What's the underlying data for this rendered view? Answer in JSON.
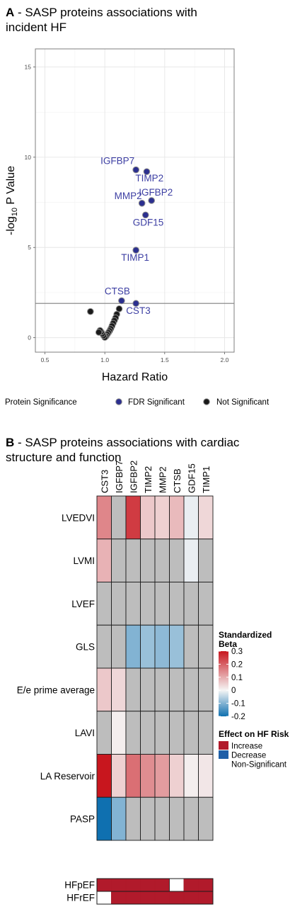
{
  "panel_a": {
    "letter": "A",
    "title": " - SASP proteins associations with incident HF",
    "chart_data": {
      "type": "scatter",
      "xlabel": "Hazard Ratio",
      "ylabel_prefix": "-log",
      "ylabel_sub": "10",
      "ylabel_suffix": " P Value",
      "xlim": [
        0.42,
        2.08
      ],
      "ylim": [
        -0.8,
        16.0
      ],
      "x_ticks": [
        0.5,
        1.0,
        1.5,
        2.0
      ],
      "x_tick_labels": [
        "0.5",
        "1.0",
        "1.5",
        "2.0"
      ],
      "y_ticks": [
        0,
        5,
        10,
        15
      ],
      "y_tick_labels": [
        "0",
        "5",
        "10",
        "15"
      ],
      "threshold_y": 1.9,
      "grid": true,
      "legend_title": "Protein Significance",
      "series": [
        {
          "name": "FDR Significant",
          "color": "#2b2f8f",
          "points": [
            {
              "x": 1.26,
              "y": 9.3,
              "label": "IGFBP7"
            },
            {
              "x": 1.35,
              "y": 9.2,
              "label": "TIMP2"
            },
            {
              "x": 1.31,
              "y": 7.45,
              "label": "MMP2"
            },
            {
              "x": 1.39,
              "y": 7.6,
              "label": "IGFBP2"
            },
            {
              "x": 1.34,
              "y": 6.8,
              "label": "GDF15"
            },
            {
              "x": 1.26,
              "y": 4.85,
              "label": "TIMP1"
            },
            {
              "x": 1.14,
              "y": 2.05,
              "label": "CTSB"
            },
            {
              "x": 1.26,
              "y": 1.9,
              "label": "CST3"
            }
          ]
        },
        {
          "name": "Not Significant",
          "color": "#1a1a1a",
          "points": [
            {
              "x": 0.88,
              "y": 1.45
            },
            {
              "x": 1.12,
              "y": 1.6
            },
            {
              "x": 1.1,
              "y": 1.3
            },
            {
              "x": 1.09,
              "y": 1.1
            },
            {
              "x": 1.08,
              "y": 0.95
            },
            {
              "x": 1.07,
              "y": 0.8
            },
            {
              "x": 1.06,
              "y": 0.65
            },
            {
              "x": 1.05,
              "y": 0.5
            },
            {
              "x": 1.04,
              "y": 0.38
            },
            {
              "x": 1.03,
              "y": 0.28
            },
            {
              "x": 1.02,
              "y": 0.18
            },
            {
              "x": 1.01,
              "y": 0.08
            },
            {
              "x": 1.0,
              "y": 0.02
            },
            {
              "x": 0.99,
              "y": 0.12
            },
            {
              "x": 0.98,
              "y": 0.22
            },
            {
              "x": 0.97,
              "y": 0.32
            },
            {
              "x": 0.96,
              "y": 0.4
            },
            {
              "x": 0.95,
              "y": 0.3
            }
          ]
        }
      ]
    }
  },
  "panel_b": {
    "letter": "B",
    "title": " - SASP proteins associations with cardiac structure and function",
    "chart_data": {
      "type": "heatmap",
      "columns": [
        "CST3",
        "IGFBP7",
        "IGFBP2",
        "TIMP2",
        "MMP2",
        "CTSB",
        "GDF15",
        "TIMP1"
      ],
      "rows": [
        "LVEDVI",
        "LVMI",
        "LVEF",
        "GLS",
        "E/e prime average",
        "LAVI",
        "LA Reservoir",
        "PASP"
      ],
      "values": [
        [
          0.15,
          null,
          0.25,
          0.06,
          0.05,
          0.08,
          -0.01,
          0.04
        ],
        [
          0.09,
          null,
          null,
          null,
          null,
          null,
          -0.01,
          null
        ],
        [
          null,
          null,
          null,
          null,
          null,
          null,
          null,
          null
        ],
        [
          null,
          null,
          -0.1,
          -0.08,
          -0.09,
          -0.08,
          null,
          null
        ],
        [
          0.06,
          0.04,
          null,
          null,
          null,
          null,
          null,
          null
        ],
        [
          null,
          0.01,
          null,
          null,
          null,
          null,
          null,
          null
        ],
        [
          0.3,
          0.05,
          0.18,
          0.14,
          0.12,
          0.05,
          0.01,
          0.02
        ],
        [
          -0.2,
          -0.1,
          null,
          null,
          null,
          null,
          null,
          null
        ]
      ],
      "color_scale": {
        "title": "Standardized Beta",
        "min": -0.2,
        "max": 0.3,
        "ticks": [
          "0.3",
          "0.2",
          "0.1",
          "0",
          "-0.1",
          "-0.2"
        ],
        "low_color": "#0f70b0",
        "mid_color": "#f5f5f5",
        "high_color": "#c8161e",
        "na_color": "#bdbdbd"
      },
      "hf_rows": [
        {
          "label": "HFpEF",
          "effects": [
            "Increase",
            "Increase",
            "Increase",
            "Increase",
            "Increase",
            "Non-Significant",
            "Increase",
            "Increase"
          ]
        },
        {
          "label": "HFrEF",
          "effects": [
            "Non-Significant",
            "Increase",
            "Increase",
            "Increase",
            "Increase",
            "Increase",
            "Increase",
            "Increase"
          ]
        }
      ],
      "hf_legend": {
        "title": "Effect on HF Risk",
        "items": [
          {
            "label": "Increase",
            "color": "#b11a2b"
          },
          {
            "label": "Decrease",
            "color": "#1f5fa8"
          },
          {
            "label": "Non-Significant",
            "color": "#ffffff"
          }
        ]
      }
    }
  }
}
